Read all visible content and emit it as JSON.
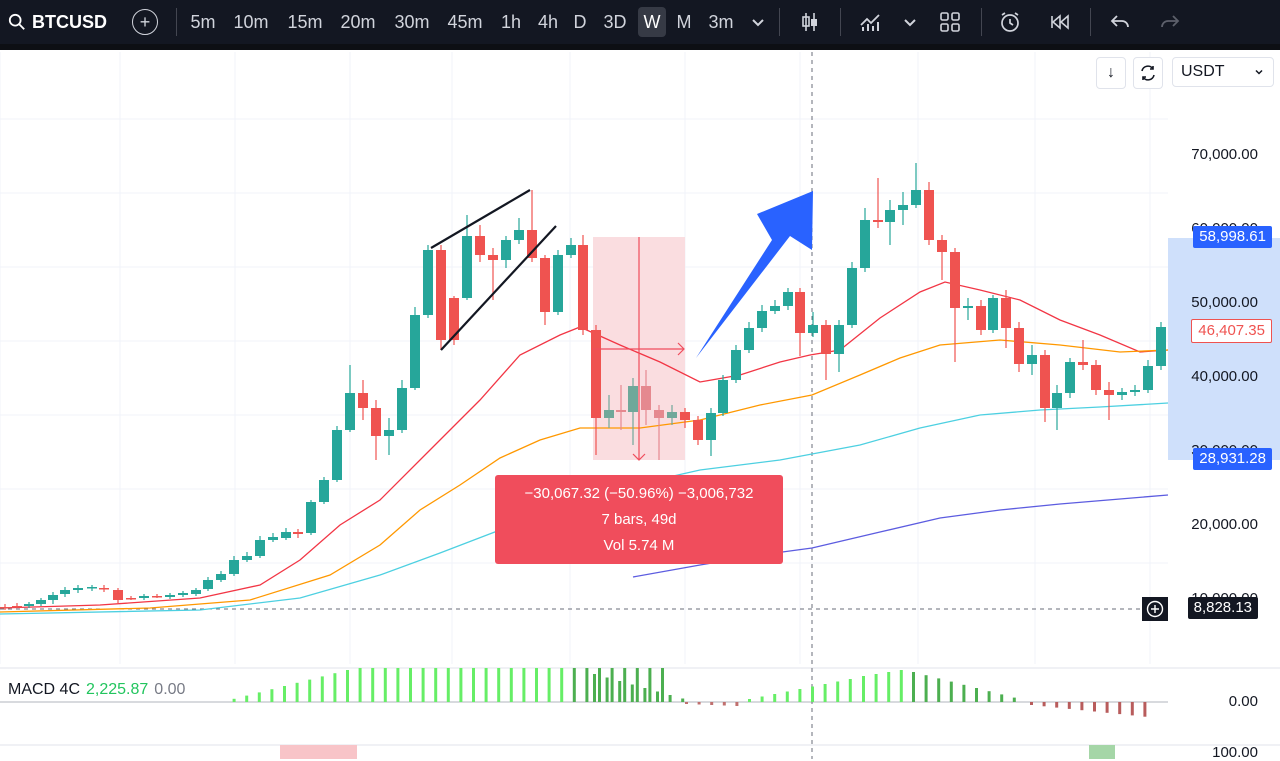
{
  "toolbar": {
    "symbol": "BTCUSD",
    "timeframes": [
      "5m",
      "10m",
      "15m",
      "20m",
      "30m",
      "45m",
      "1h",
      "4h",
      "D",
      "3D",
      "W",
      "M",
      "3m"
    ],
    "active_timeframe": "W",
    "icons": [
      "search-icon",
      "add-symbol-icon",
      "chevron-down-icon",
      "candles-chart-type-icon",
      "indicators-icon",
      "chevron-down-icon",
      "layout-grid-icon",
      "alert-clock-icon",
      "replay-icon",
      "undo-icon",
      "redo-icon"
    ]
  },
  "axis": {
    "currency": "USDT",
    "scroll_down_label": "↓",
    "labels": [
      "70,000.00",
      "60,000.00",
      "50,000.00",
      "40,000.00",
      "30,000.00",
      "20,000.00",
      "10,000.00"
    ],
    "macd_zero": "0.00",
    "bottom_label": "100.00"
  },
  "tags": {
    "upper_range": "58,998.61",
    "last_price": "46,407.35",
    "lower_range": "28,931.28",
    "crosshair": "8,828.13"
  },
  "measure": {
    "line1": "−30,067.32 (−50.96%) −3,006,732",
    "line2": "7 bars, 49d",
    "line3": "Vol 5.74 M"
  },
  "macd": {
    "name": "MACD 4C",
    "value": "2,225.87",
    "zero": "0.00"
  },
  "colors": {
    "up": "#26a69a",
    "down": "#ef5350",
    "accent_blue": "#2962ff",
    "toolbar_bg": "#131722"
  }
}
